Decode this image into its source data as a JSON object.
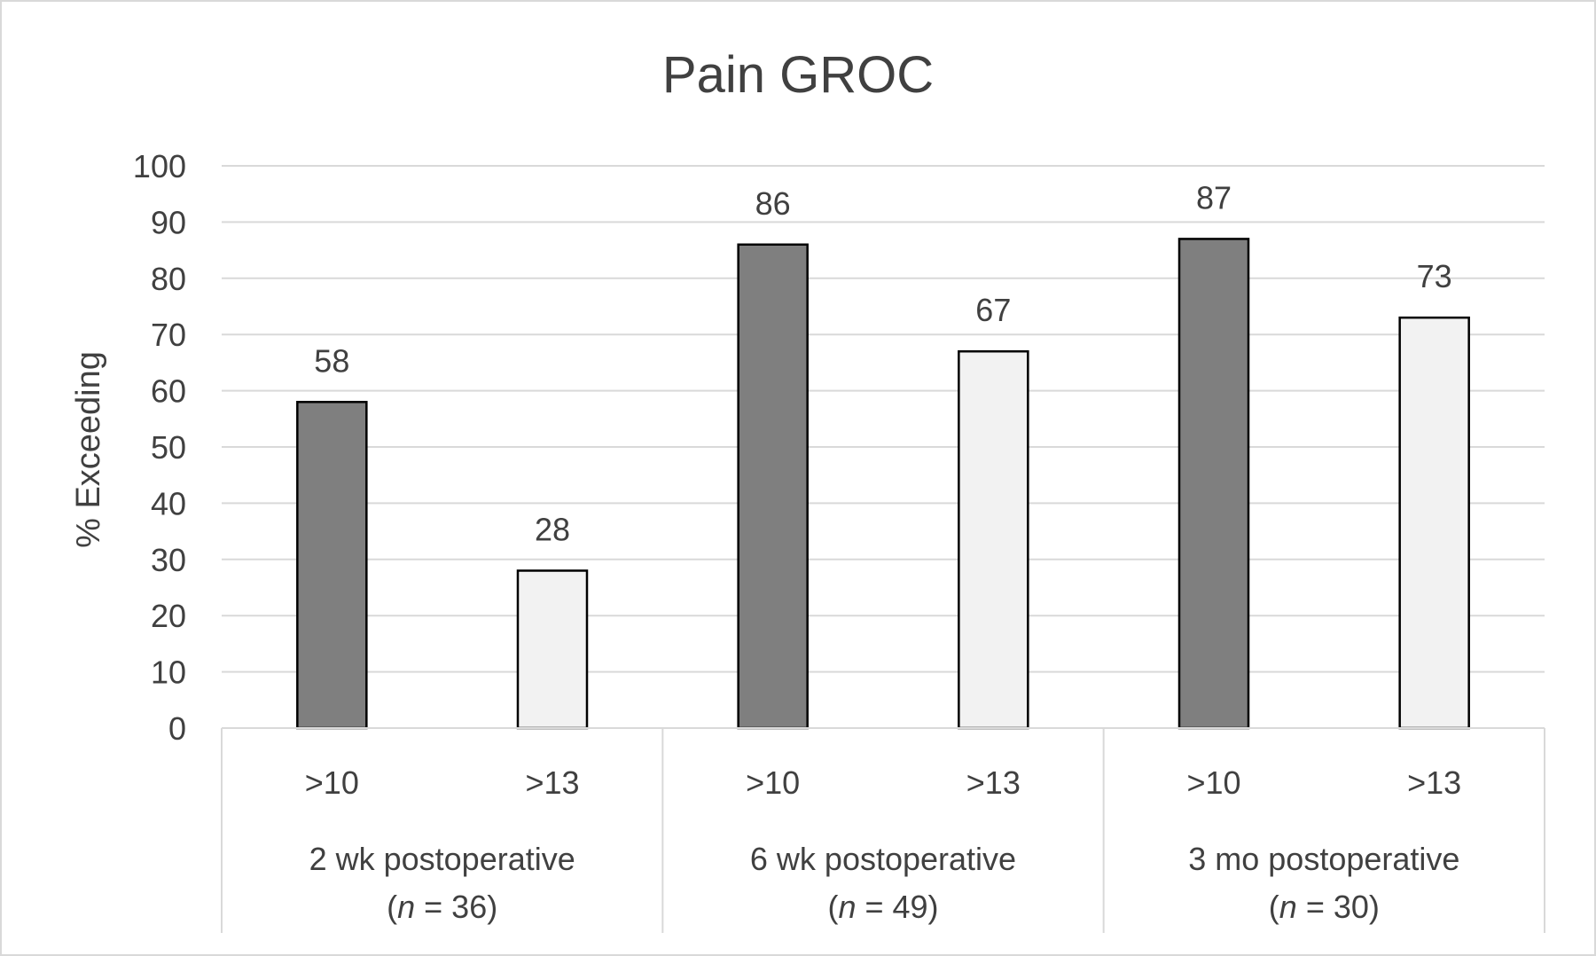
{
  "chart_data": {
    "type": "bar",
    "title": "Pain GROC",
    "ylabel": "% Exceeding",
    "xlabel": "",
    "ylim": [
      0,
      100
    ],
    "yticks": [
      0,
      10,
      20,
      30,
      40,
      50,
      60,
      70,
      80,
      90,
      100
    ],
    "grid": true,
    "groups": [
      {
        "label": "2 wk postoperative",
        "n_prefix": "(",
        "n_italic": "n",
        "n_suffix": " = 36)",
        "bars": [
          {
            "category": ">10",
            "value": 58,
            "label": "58"
          },
          {
            "category": ">13",
            "value": 28,
            "label": "28"
          }
        ]
      },
      {
        "label": "6 wk postoperative",
        "n_prefix": "(",
        "n_italic": "n",
        "n_suffix": " = 49)",
        "bars": [
          {
            "category": ">10",
            "value": 86,
            "label": "86"
          },
          {
            "category": ">13",
            "value": 67,
            "label": "67"
          }
        ]
      },
      {
        "label": "3 mo postoperative",
        "n_prefix": "(",
        "n_italic": "n",
        "n_suffix": " = 30)",
        "bars": [
          {
            "category": ">10",
            "value": 87,
            "label": "87"
          },
          {
            "category": ">13",
            "value": 73,
            "label": "73"
          }
        ]
      }
    ],
    "colors": {
      "bar_dark": "#7f7f7f",
      "bar_light": "#f2f2f2",
      "bar_stroke": "#000000",
      "grid": "#d9d9d9",
      "text": "#404040"
    }
  }
}
